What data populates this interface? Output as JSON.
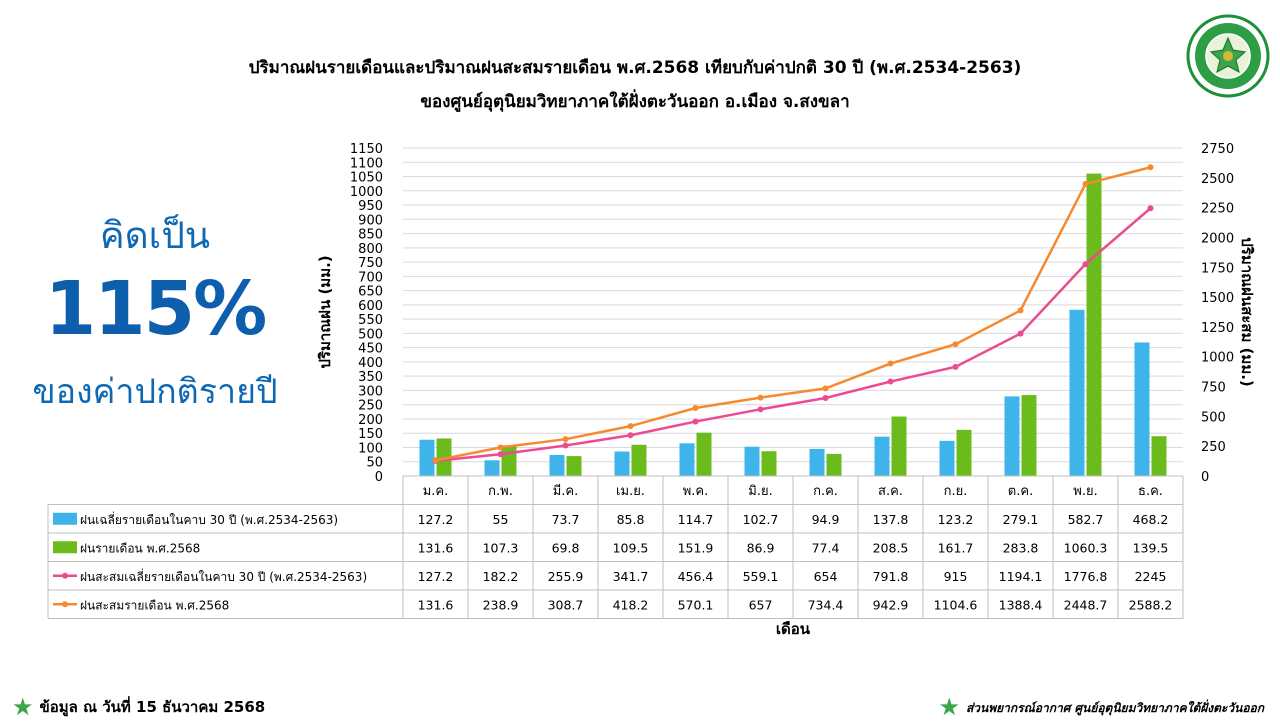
{
  "header": {
    "title_line1": "ปริมาณฝนรายเดือนและปริมาณฝนสะสมรายเดือน  พ.ศ.2568  เทียบกับค่าปกติ  30  ปี  (พ.ศ.2534-2563)",
    "title_line2": "ของศูนย์อุตุนิยมวิทยาภาคใต้ฝั่งตะวันออก  อ.เมือง  จ.สงขลา",
    "logo_text_top": "กรมอุตุนิยมวิทยา",
    "logo_text_bottom": "METEOROLOGICAL DEPARTMENT"
  },
  "summary": {
    "label": "คิดเป็น",
    "value": "115%",
    "sublabel": "ของค่าปกติรายปี"
  },
  "footer": {
    "left": "ข้อมูล ณ วันที่ 15 ธันวาคม 2568",
    "right": "ส่วนพยากรณ์อากาศ ศูนย์อุตุนิยมวิทยาภาคใต้ฝั่งตะวันออก"
  },
  "colors": {
    "normal_monthly": "#3fb4ea",
    "monthly_2568": "#6cbb1c",
    "normal_cumulative": "#ec4b92",
    "cumulative_2568": "#f58a2e",
    "accent_text": "#0e68b3",
    "star": "#3aa64a"
  },
  "chart_data": {
    "type": "bar",
    "categories": [
      "ม.ค.",
      "ก.พ.",
      "มี.ค.",
      "เม.ย.",
      "พ.ค.",
      "มิ.ย.",
      "ก.ค.",
      "ส.ค.",
      "ก.ย.",
      "ต.ค.",
      "พ.ย.",
      "ธ.ค."
    ],
    "xlabel": "เดือน",
    "ylabel": "ปริมาณฝน (มม.)",
    "ylabel_right": "ปริมาณฝนสะสม (มม.)",
    "ylim": [
      0,
      1150
    ],
    "ylim_right": [
      0,
      2750
    ],
    "yticks": [
      0,
      50,
      100,
      150,
      200,
      250,
      300,
      350,
      400,
      450,
      500,
      550,
      600,
      650,
      700,
      750,
      800,
      850,
      900,
      950,
      1000,
      1050,
      1100,
      1150
    ],
    "yticks_right": [
      0,
      250,
      500,
      750,
      1000,
      1250,
      1500,
      1750,
      2000,
      2250,
      2500,
      2750
    ],
    "grid": true,
    "data_table": true,
    "series": [
      {
        "name": "ฝนเฉลี่ยรายเดือนในคาบ 30 ปี (พ.ศ.2534-2563)",
        "type": "bar",
        "axis": "left",
        "values": [
          127.2,
          55,
          73.7,
          85.8,
          114.7,
          102.7,
          94.9,
          137.8,
          123.2,
          279.1,
          582.7,
          468.2
        ]
      },
      {
        "name": "ฝนรายเดือน พ.ศ.2568",
        "type": "bar",
        "axis": "left",
        "values": [
          131.6,
          107.3,
          69.8,
          109.5,
          151.9,
          86.9,
          77.4,
          208.5,
          161.7,
          283.8,
          1060.3,
          139.5
        ]
      },
      {
        "name": "ฝนสะสมเฉลี่ยรายเดือนในคาบ 30 ปี (พ.ศ.2534-2563)",
        "type": "line",
        "axis": "right",
        "values": [
          127.2,
          182.2,
          255.9,
          341.7,
          456.4,
          559.1,
          654,
          791.8,
          915,
          1194.1,
          1776.8,
          2245
        ]
      },
      {
        "name": "ฝนสะสมรายเดือน พ.ศ.2568",
        "type": "line",
        "axis": "right",
        "values": [
          131.6,
          238.9,
          308.7,
          418.2,
          570.1,
          657,
          734.4,
          942.9,
          1104.6,
          1388.4,
          2448.7,
          2588.2
        ]
      }
    ]
  }
}
